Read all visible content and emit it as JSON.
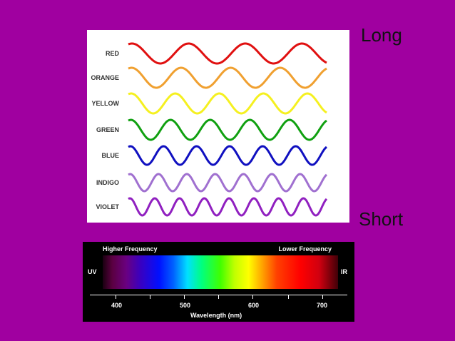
{
  "wave_colors": [
    {
      "label": "RED",
      "color": "#e01010",
      "cycles": 3.5
    },
    {
      "label": "ORANGE",
      "color": "#f0a030",
      "cycles": 4.0
    },
    {
      "label": "YELLOW",
      "color": "#f5f020",
      "cycles": 4.5
    },
    {
      "label": "GREEN",
      "color": "#10a010",
      "cycles": 5.0
    },
    {
      "label": "BLUE",
      "color": "#1010c0",
      "cycles": 6.0
    },
    {
      "label": "INDIGO",
      "color": "#a070d0",
      "cycles": 7.0
    },
    {
      "label": "VIOLET",
      "color": "#9020c0",
      "cycles": 8.0
    }
  ],
  "side_labels": {
    "long": "Long",
    "short": "Short"
  },
  "spectrum": {
    "higher_frequency": "Higher Frequency",
    "lower_frequency": "Lower Frequency",
    "uv": "UV",
    "ir": "IR",
    "axis_title": "Wavelength (nm)",
    "ticks": [
      "400",
      "500",
      "600",
      "700"
    ]
  }
}
